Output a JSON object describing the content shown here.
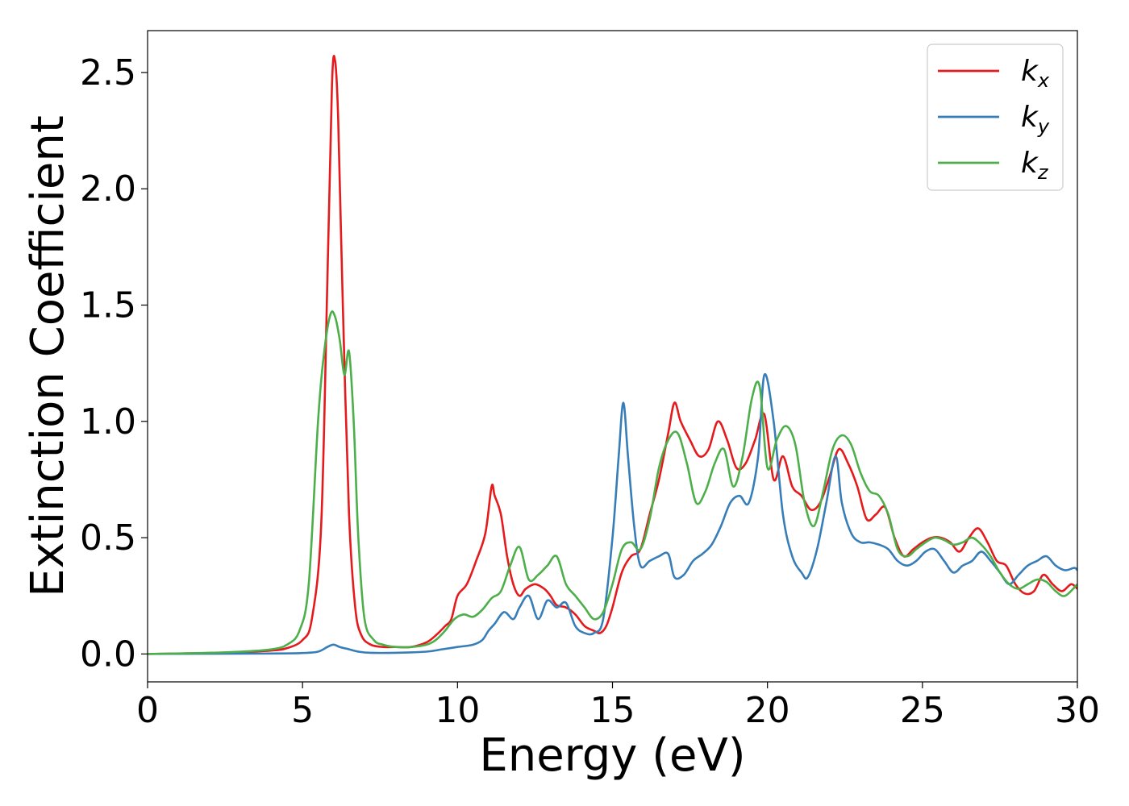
{
  "chart_data": {
    "type": "line",
    "xlabel": "Energy (eV)",
    "ylabel": "Extinction Coefficient",
    "xlim": [
      0,
      30
    ],
    "ylim": [
      -0.12,
      2.68
    ],
    "xticks": [
      0,
      5,
      10,
      15,
      20,
      25,
      30
    ],
    "xtick_labels": [
      "0",
      "5",
      "10",
      "15",
      "20",
      "25",
      "30"
    ],
    "yticks": [
      0.0,
      0.5,
      1.0,
      1.5,
      2.0,
      2.5
    ],
    "ytick_labels": [
      "0.0",
      "0.5",
      "1.0",
      "1.5",
      "2.0",
      "2.5"
    ],
    "grid": false,
    "legend_position": "top-right",
    "series": [
      {
        "name": "k_x",
        "legend_main": "k",
        "legend_sub": "x",
        "color": "#e41a1c",
        "x": [
          0,
          2,
          3,
          4,
          4.5,
          5,
          5.3,
          5.6,
          5.8,
          5.95,
          6.05,
          6.15,
          6.3,
          6.5,
          6.7,
          6.9,
          7.2,
          7.6,
          8,
          8.5,
          9,
          9.3,
          9.6,
          9.8,
          10,
          10.3,
          10.6,
          10.9,
          11.1,
          11.2,
          11.4,
          11.6,
          11.8,
          12,
          12.2,
          12.5,
          12.8,
          13,
          13.2,
          13.5,
          13.8,
          14.1,
          14.4,
          14.6,
          14.8,
          15,
          15.3,
          15.6,
          15.9,
          16.2,
          16.5,
          16.8,
          17,
          17.2,
          17.5,
          17.8,
          18.1,
          18.4,
          18.7,
          19,
          19.3,
          19.6,
          19.9,
          20.2,
          20.5,
          20.8,
          21.1,
          21.4,
          21.7,
          22,
          22.3,
          22.6,
          22.9,
          23.2,
          23.5,
          23.8,
          24.1,
          24.4,
          24.7,
          25,
          25.3,
          25.6,
          25.9,
          26.2,
          26.5,
          26.8,
          27.1,
          27.4,
          27.7,
          28,
          28.3,
          28.6,
          28.9,
          29.2,
          29.5,
          29.8,
          30
        ],
        "y": [
          0,
          0.004,
          0.008,
          0.015,
          0.025,
          0.06,
          0.15,
          0.55,
          1.6,
          2.45,
          2.55,
          2.3,
          1.5,
          0.6,
          0.2,
          0.08,
          0.04,
          0.03,
          0.03,
          0.03,
          0.05,
          0.08,
          0.12,
          0.15,
          0.25,
          0.3,
          0.4,
          0.52,
          0.72,
          0.68,
          0.6,
          0.42,
          0.3,
          0.25,
          0.28,
          0.3,
          0.28,
          0.25,
          0.21,
          0.2,
          0.17,
          0.12,
          0.1,
          0.09,
          0.12,
          0.2,
          0.35,
          0.42,
          0.45,
          0.6,
          0.75,
          0.95,
          1.08,
          1.0,
          0.92,
          0.85,
          0.88,
          1.0,
          0.92,
          0.8,
          0.82,
          0.92,
          1.03,
          0.75,
          0.85,
          0.72,
          0.68,
          0.62,
          0.65,
          0.76,
          0.88,
          0.82,
          0.72,
          0.58,
          0.6,
          0.63,
          0.5,
          0.42,
          0.45,
          0.48,
          0.5,
          0.5,
          0.48,
          0.44,
          0.5,
          0.54,
          0.48,
          0.4,
          0.38,
          0.3,
          0.26,
          0.27,
          0.34,
          0.3,
          0.27,
          0.3,
          0.28
        ]
      },
      {
        "name": "k_y",
        "legend_main": "k",
        "legend_sub": "y",
        "color": "#377eb8",
        "x": [
          0,
          4,
          5,
          5.5,
          5.8,
          6,
          6.2,
          6.5,
          6.8,
          7.2,
          8,
          9,
          9.5,
          10,
          10.5,
          10.8,
          11,
          11.2,
          11.5,
          11.8,
          12,
          12.3,
          12.6,
          12.9,
          13.2,
          13.5,
          13.8,
          14.1,
          14.4,
          14.7,
          15,
          15.2,
          15.35,
          15.5,
          15.7,
          15.9,
          16.2,
          16.5,
          16.8,
          17,
          17.3,
          17.6,
          17.9,
          18.2,
          18.5,
          18.8,
          19.1,
          19.4,
          19.7,
          19.9,
          20.2,
          20.5,
          20.8,
          21.1,
          21.3,
          21.6,
          21.9,
          22.2,
          22.4,
          22.7,
          23,
          23.3,
          23.6,
          23.9,
          24.2,
          24.5,
          24.8,
          25.1,
          25.4,
          25.7,
          26,
          26.3,
          26.6,
          26.9,
          27.2,
          27.5,
          27.8,
          28.1,
          28.4,
          28.7,
          29,
          29.3,
          29.6,
          29.9,
          30
        ],
        "y": [
          0,
          0.002,
          0.004,
          0.01,
          0.03,
          0.04,
          0.03,
          0.02,
          0.01,
          0.005,
          0.005,
          0.01,
          0.02,
          0.03,
          0.04,
          0.06,
          0.1,
          0.13,
          0.18,
          0.15,
          0.2,
          0.25,
          0.15,
          0.23,
          0.2,
          0.22,
          0.12,
          0.09,
          0.09,
          0.15,
          0.5,
          0.85,
          1.08,
          0.85,
          0.55,
          0.38,
          0.4,
          0.42,
          0.43,
          0.33,
          0.34,
          0.4,
          0.43,
          0.47,
          0.55,
          0.65,
          0.68,
          0.65,
          0.85,
          1.2,
          1.0,
          0.6,
          0.42,
          0.35,
          0.33,
          0.45,
          0.65,
          0.85,
          0.65,
          0.52,
          0.48,
          0.48,
          0.47,
          0.45,
          0.4,
          0.38,
          0.4,
          0.44,
          0.45,
          0.4,
          0.35,
          0.38,
          0.4,
          0.44,
          0.4,
          0.35,
          0.3,
          0.34,
          0.38,
          0.4,
          0.42,
          0.38,
          0.36,
          0.37,
          0.36
        ]
      },
      {
        "name": "k_z",
        "legend_main": "k",
        "legend_sub": "z",
        "color": "#4daf4a",
        "x": [
          0,
          2,
          3,
          4,
          4.5,
          4.9,
          5.2,
          5.5,
          5.7,
          5.9,
          6.05,
          6.2,
          6.35,
          6.5,
          6.65,
          6.8,
          7,
          7.3,
          7.6,
          8,
          8.5,
          9,
          9.3,
          9.6,
          9.9,
          10.2,
          10.5,
          10.8,
          11.1,
          11.4,
          11.7,
          12,
          12.3,
          12.6,
          12.9,
          13.2,
          13.5,
          13.8,
          14.1,
          14.4,
          14.7,
          15,
          15.3,
          15.6,
          15.9,
          16.2,
          16.5,
          16.8,
          17.1,
          17.4,
          17.7,
          18,
          18.3,
          18.6,
          18.9,
          19.2,
          19.5,
          19.75,
          20,
          20.3,
          20.6,
          20.9,
          21.2,
          21.5,
          21.8,
          22.1,
          22.4,
          22.7,
          23,
          23.3,
          23.6,
          23.9,
          24.2,
          24.5,
          24.8,
          25.1,
          25.4,
          25.7,
          26,
          26.3,
          26.6,
          26.9,
          27.2,
          27.5,
          27.8,
          28.1,
          28.4,
          28.7,
          29,
          29.3,
          29.6,
          30
        ],
        "y": [
          0,
          0.005,
          0.01,
          0.02,
          0.04,
          0.1,
          0.3,
          1.0,
          1.3,
          1.46,
          1.45,
          1.35,
          1.2,
          1.3,
          1.0,
          0.5,
          0.15,
          0.06,
          0.04,
          0.03,
          0.03,
          0.04,
          0.06,
          0.1,
          0.15,
          0.17,
          0.16,
          0.19,
          0.24,
          0.27,
          0.38,
          0.46,
          0.32,
          0.34,
          0.38,
          0.42,
          0.3,
          0.25,
          0.2,
          0.15,
          0.18,
          0.3,
          0.45,
          0.48,
          0.45,
          0.58,
          0.8,
          0.92,
          0.95,
          0.82,
          0.65,
          0.7,
          0.82,
          0.88,
          0.72,
          0.85,
          1.1,
          1.15,
          0.8,
          0.92,
          0.98,
          0.9,
          0.65,
          0.55,
          0.7,
          0.88,
          0.94,
          0.9,
          0.78,
          0.7,
          0.68,
          0.6,
          0.45,
          0.42,
          0.45,
          0.48,
          0.5,
          0.49,
          0.47,
          0.48,
          0.5,
          0.47,
          0.42,
          0.35,
          0.3,
          0.28,
          0.3,
          0.32,
          0.31,
          0.27,
          0.25,
          0.3
        ]
      }
    ]
  }
}
